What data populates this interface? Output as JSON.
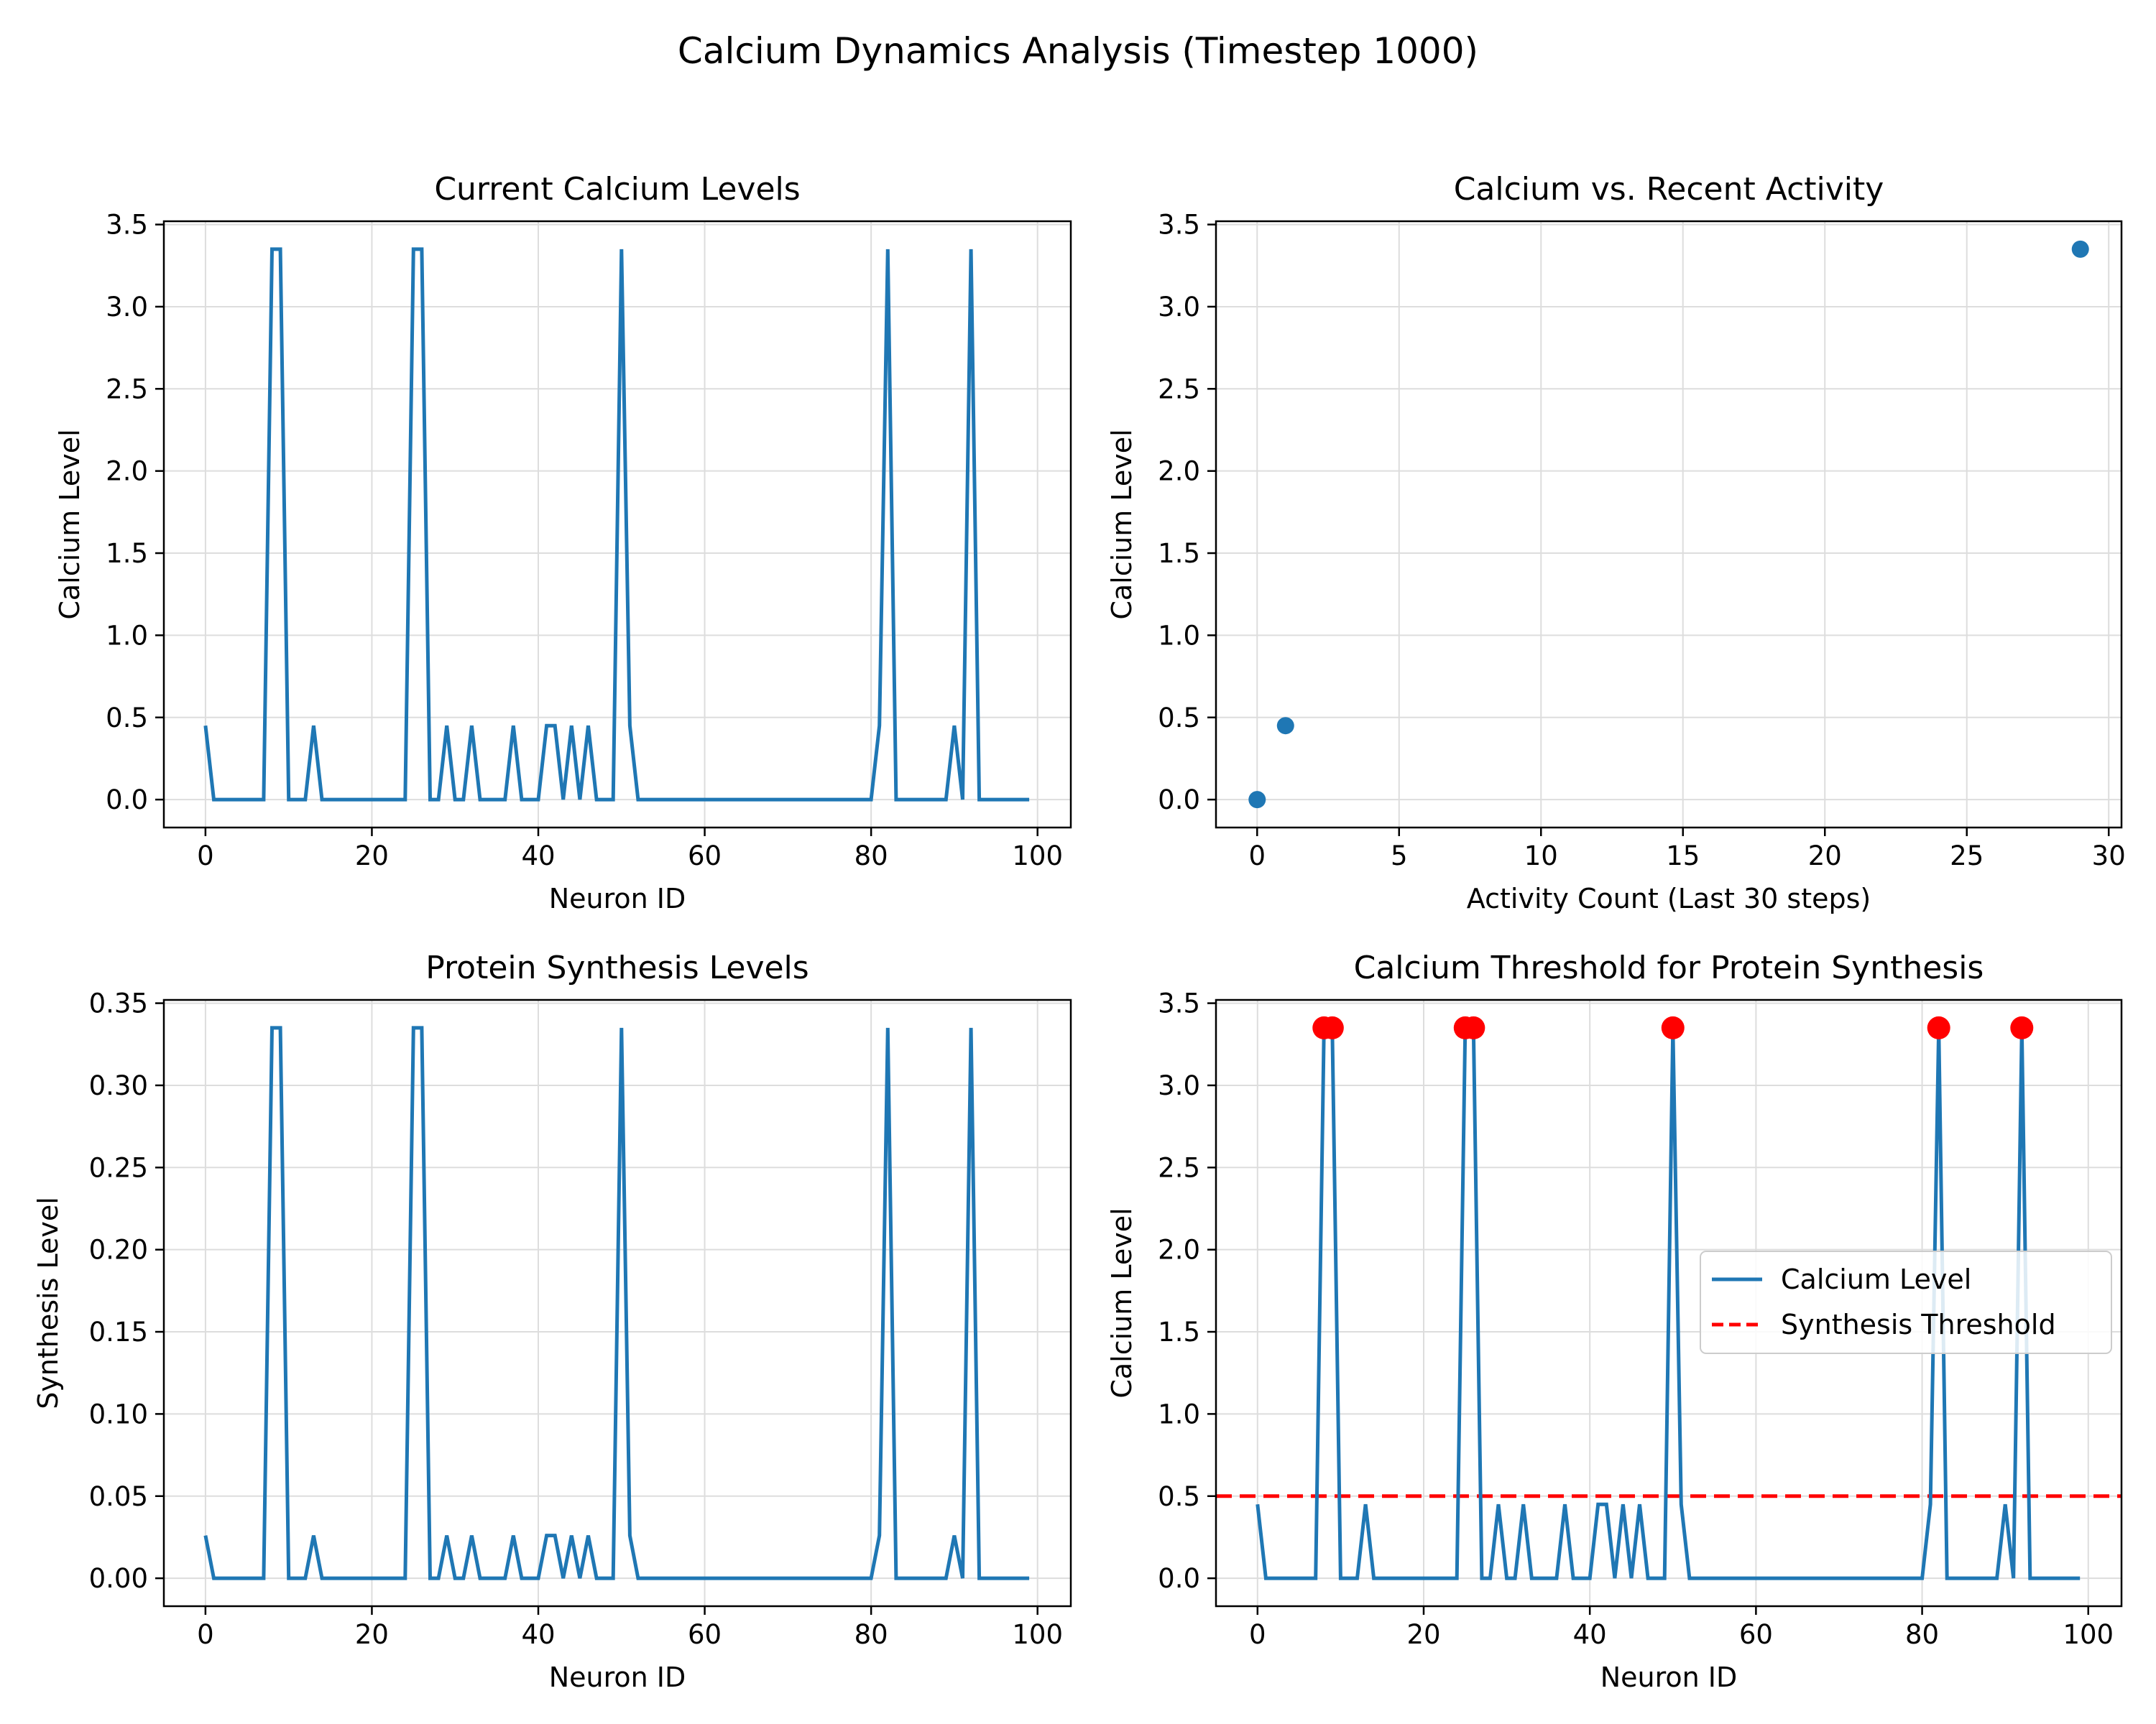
{
  "suptitle": "Calcium Dynamics Analysis (Timestep 1000)",
  "colors": {
    "line": "#1f77b4",
    "marker": "#ff0000",
    "threshold": "#ff0000",
    "grid": "#dddddd"
  },
  "chart_data": [
    {
      "id": "current-calcium",
      "type": "line",
      "title": "Current Calcium Levels",
      "xlabel": "Neuron ID",
      "ylabel": "Calcium Level",
      "xlim": [
        -5,
        104
      ],
      "ylim": [
        -0.17,
        3.52
      ],
      "xticks": [
        0,
        20,
        40,
        60,
        80,
        100
      ],
      "yticks": [
        0.0,
        0.5,
        1.0,
        1.5,
        2.0,
        2.5,
        3.0,
        3.5
      ],
      "yticklabels": [
        "0.0",
        "0.5",
        "1.0",
        "1.5",
        "2.0",
        "2.5",
        "3.0",
        "3.5"
      ],
      "grid": true,
      "series": [
        {
          "x": "0-99",
          "values": [
            0.45,
            0,
            0,
            0,
            0,
            0,
            0,
            0,
            3.35,
            3.35,
            0,
            0,
            0,
            0.45,
            0,
            0,
            0,
            0,
            0,
            0,
            0,
            0,
            0,
            0,
            0,
            3.35,
            3.35,
            0,
            0,
            0.45,
            0,
            0,
            0.45,
            0,
            0,
            0,
            0,
            0.45,
            0,
            0,
            0,
            0.45,
            0.45,
            0,
            0.45,
            0,
            0.45,
            0,
            0,
            0,
            3.35,
            0.45,
            0,
            0,
            0,
            0,
            0,
            0,
            0,
            0,
            0,
            0,
            0,
            0,
            0,
            0,
            0,
            0,
            0,
            0,
            0,
            0,
            0,
            0,
            0,
            0,
            0,
            0,
            0,
            0,
            0,
            0.45,
            3.35,
            0,
            0,
            0,
            0,
            0,
            0,
            0,
            0.45,
            0,
            3.35,
            0,
            0,
            0,
            0,
            0,
            0,
            0
          ]
        }
      ]
    },
    {
      "id": "calcium-vs-activity",
      "type": "scatter",
      "title": "Calcium vs. Recent Activity",
      "xlabel": "Activity Count (Last 30 steps)",
      "ylabel": "Calcium Level",
      "xlim": [
        -1.45,
        30.45
      ],
      "ylim": [
        -0.17,
        3.52
      ],
      "xticks": [
        0,
        5,
        10,
        15,
        20,
        25,
        30
      ],
      "yticks": [
        0.0,
        0.5,
        1.0,
        1.5,
        2.0,
        2.5,
        3.0,
        3.5
      ],
      "yticklabels": [
        "0.0",
        "0.5",
        "1.0",
        "1.5",
        "2.0",
        "2.5",
        "3.0",
        "3.5"
      ],
      "grid": true,
      "points": [
        {
          "x": 0,
          "y": 0.0
        },
        {
          "x": 1,
          "y": 0.45
        },
        {
          "x": 29,
          "y": 3.35
        }
      ]
    },
    {
      "id": "protein-synthesis",
      "type": "line",
      "title": "Protein Synthesis Levels",
      "xlabel": "Neuron ID",
      "ylabel": "Synthesis Level",
      "xlim": [
        -5,
        104
      ],
      "ylim": [
        -0.017,
        0.352
      ],
      "xticks": [
        0,
        20,
        40,
        60,
        80,
        100
      ],
      "yticks": [
        0.0,
        0.05,
        0.1,
        0.15,
        0.2,
        0.25,
        0.3,
        0.35
      ],
      "yticklabels": [
        "0.00",
        "0.05",
        "0.10",
        "0.15",
        "0.20",
        "0.25",
        "0.30",
        "0.35"
      ],
      "grid": true,
      "series": [
        {
          "x": "0-99",
          "values": [
            0.026,
            0,
            0,
            0,
            0,
            0,
            0,
            0,
            0.335,
            0.335,
            0,
            0,
            0,
            0.026,
            0,
            0,
            0,
            0,
            0,
            0,
            0,
            0,
            0,
            0,
            0,
            0.335,
            0.335,
            0,
            0,
            0.026,
            0,
            0,
            0.026,
            0,
            0,
            0,
            0,
            0.026,
            0,
            0,
            0,
            0.026,
            0.026,
            0,
            0.026,
            0,
            0.026,
            0,
            0,
            0,
            0.335,
            0.026,
            0,
            0,
            0,
            0,
            0,
            0,
            0,
            0,
            0,
            0,
            0,
            0,
            0,
            0,
            0,
            0,
            0,
            0,
            0,
            0,
            0,
            0,
            0,
            0,
            0,
            0,
            0,
            0,
            0,
            0.026,
            0.335,
            0,
            0,
            0,
            0,
            0,
            0,
            0,
            0.026,
            0,
            0.335,
            0,
            0,
            0,
            0,
            0,
            0,
            0
          ]
        }
      ]
    },
    {
      "id": "calcium-threshold",
      "type": "line",
      "title": "Calcium Threshold for Protein Synthesis",
      "xlabel": "Neuron ID",
      "ylabel": "Calcium Level",
      "xlim": [
        -5,
        104
      ],
      "ylim": [
        -0.17,
        3.52
      ],
      "xticks": [
        0,
        20,
        40,
        60,
        80,
        100
      ],
      "yticks": [
        0.0,
        0.5,
        1.0,
        1.5,
        2.0,
        2.5,
        3.0,
        3.5
      ],
      "yticklabels": [
        "0.0",
        "0.5",
        "1.0",
        "1.5",
        "2.0",
        "2.5",
        "3.0",
        "3.5"
      ],
      "grid": true,
      "series": [
        {
          "name": "Calcium Level",
          "x": "0-99",
          "values": [
            0.45,
            0,
            0,
            0,
            0,
            0,
            0,
            0,
            3.35,
            3.35,
            0,
            0,
            0,
            0.45,
            0,
            0,
            0,
            0,
            0,
            0,
            0,
            0,
            0,
            0,
            0,
            3.35,
            3.35,
            0,
            0,
            0.45,
            0,
            0,
            0.45,
            0,
            0,
            0,
            0,
            0.45,
            0,
            0,
            0,
            0.45,
            0.45,
            0,
            0.45,
            0,
            0.45,
            0,
            0,
            0,
            3.35,
            0.45,
            0,
            0,
            0,
            0,
            0,
            0,
            0,
            0,
            0,
            0,
            0,
            0,
            0,
            0,
            0,
            0,
            0,
            0,
            0,
            0,
            0,
            0,
            0,
            0,
            0,
            0,
            0,
            0,
            0,
            0.45,
            3.35,
            0,
            0,
            0,
            0,
            0,
            0,
            0,
            0.45,
            0,
            3.35,
            0,
            0,
            0,
            0,
            0,
            0,
            0
          ]
        }
      ],
      "threshold": {
        "name": "Synthesis Threshold",
        "y": 0.5
      },
      "highlight_points": [
        {
          "x": 8,
          "y": 3.35
        },
        {
          "x": 9,
          "y": 3.35
        },
        {
          "x": 25,
          "y": 3.35
        },
        {
          "x": 26,
          "y": 3.35
        },
        {
          "x": 50,
          "y": 3.35
        },
        {
          "x": 82,
          "y": 3.35
        },
        {
          "x": 92,
          "y": 3.35
        }
      ],
      "legend": {
        "placement": "center-right",
        "entries": [
          "Calcium Level",
          "Synthesis Threshold"
        ]
      }
    }
  ]
}
